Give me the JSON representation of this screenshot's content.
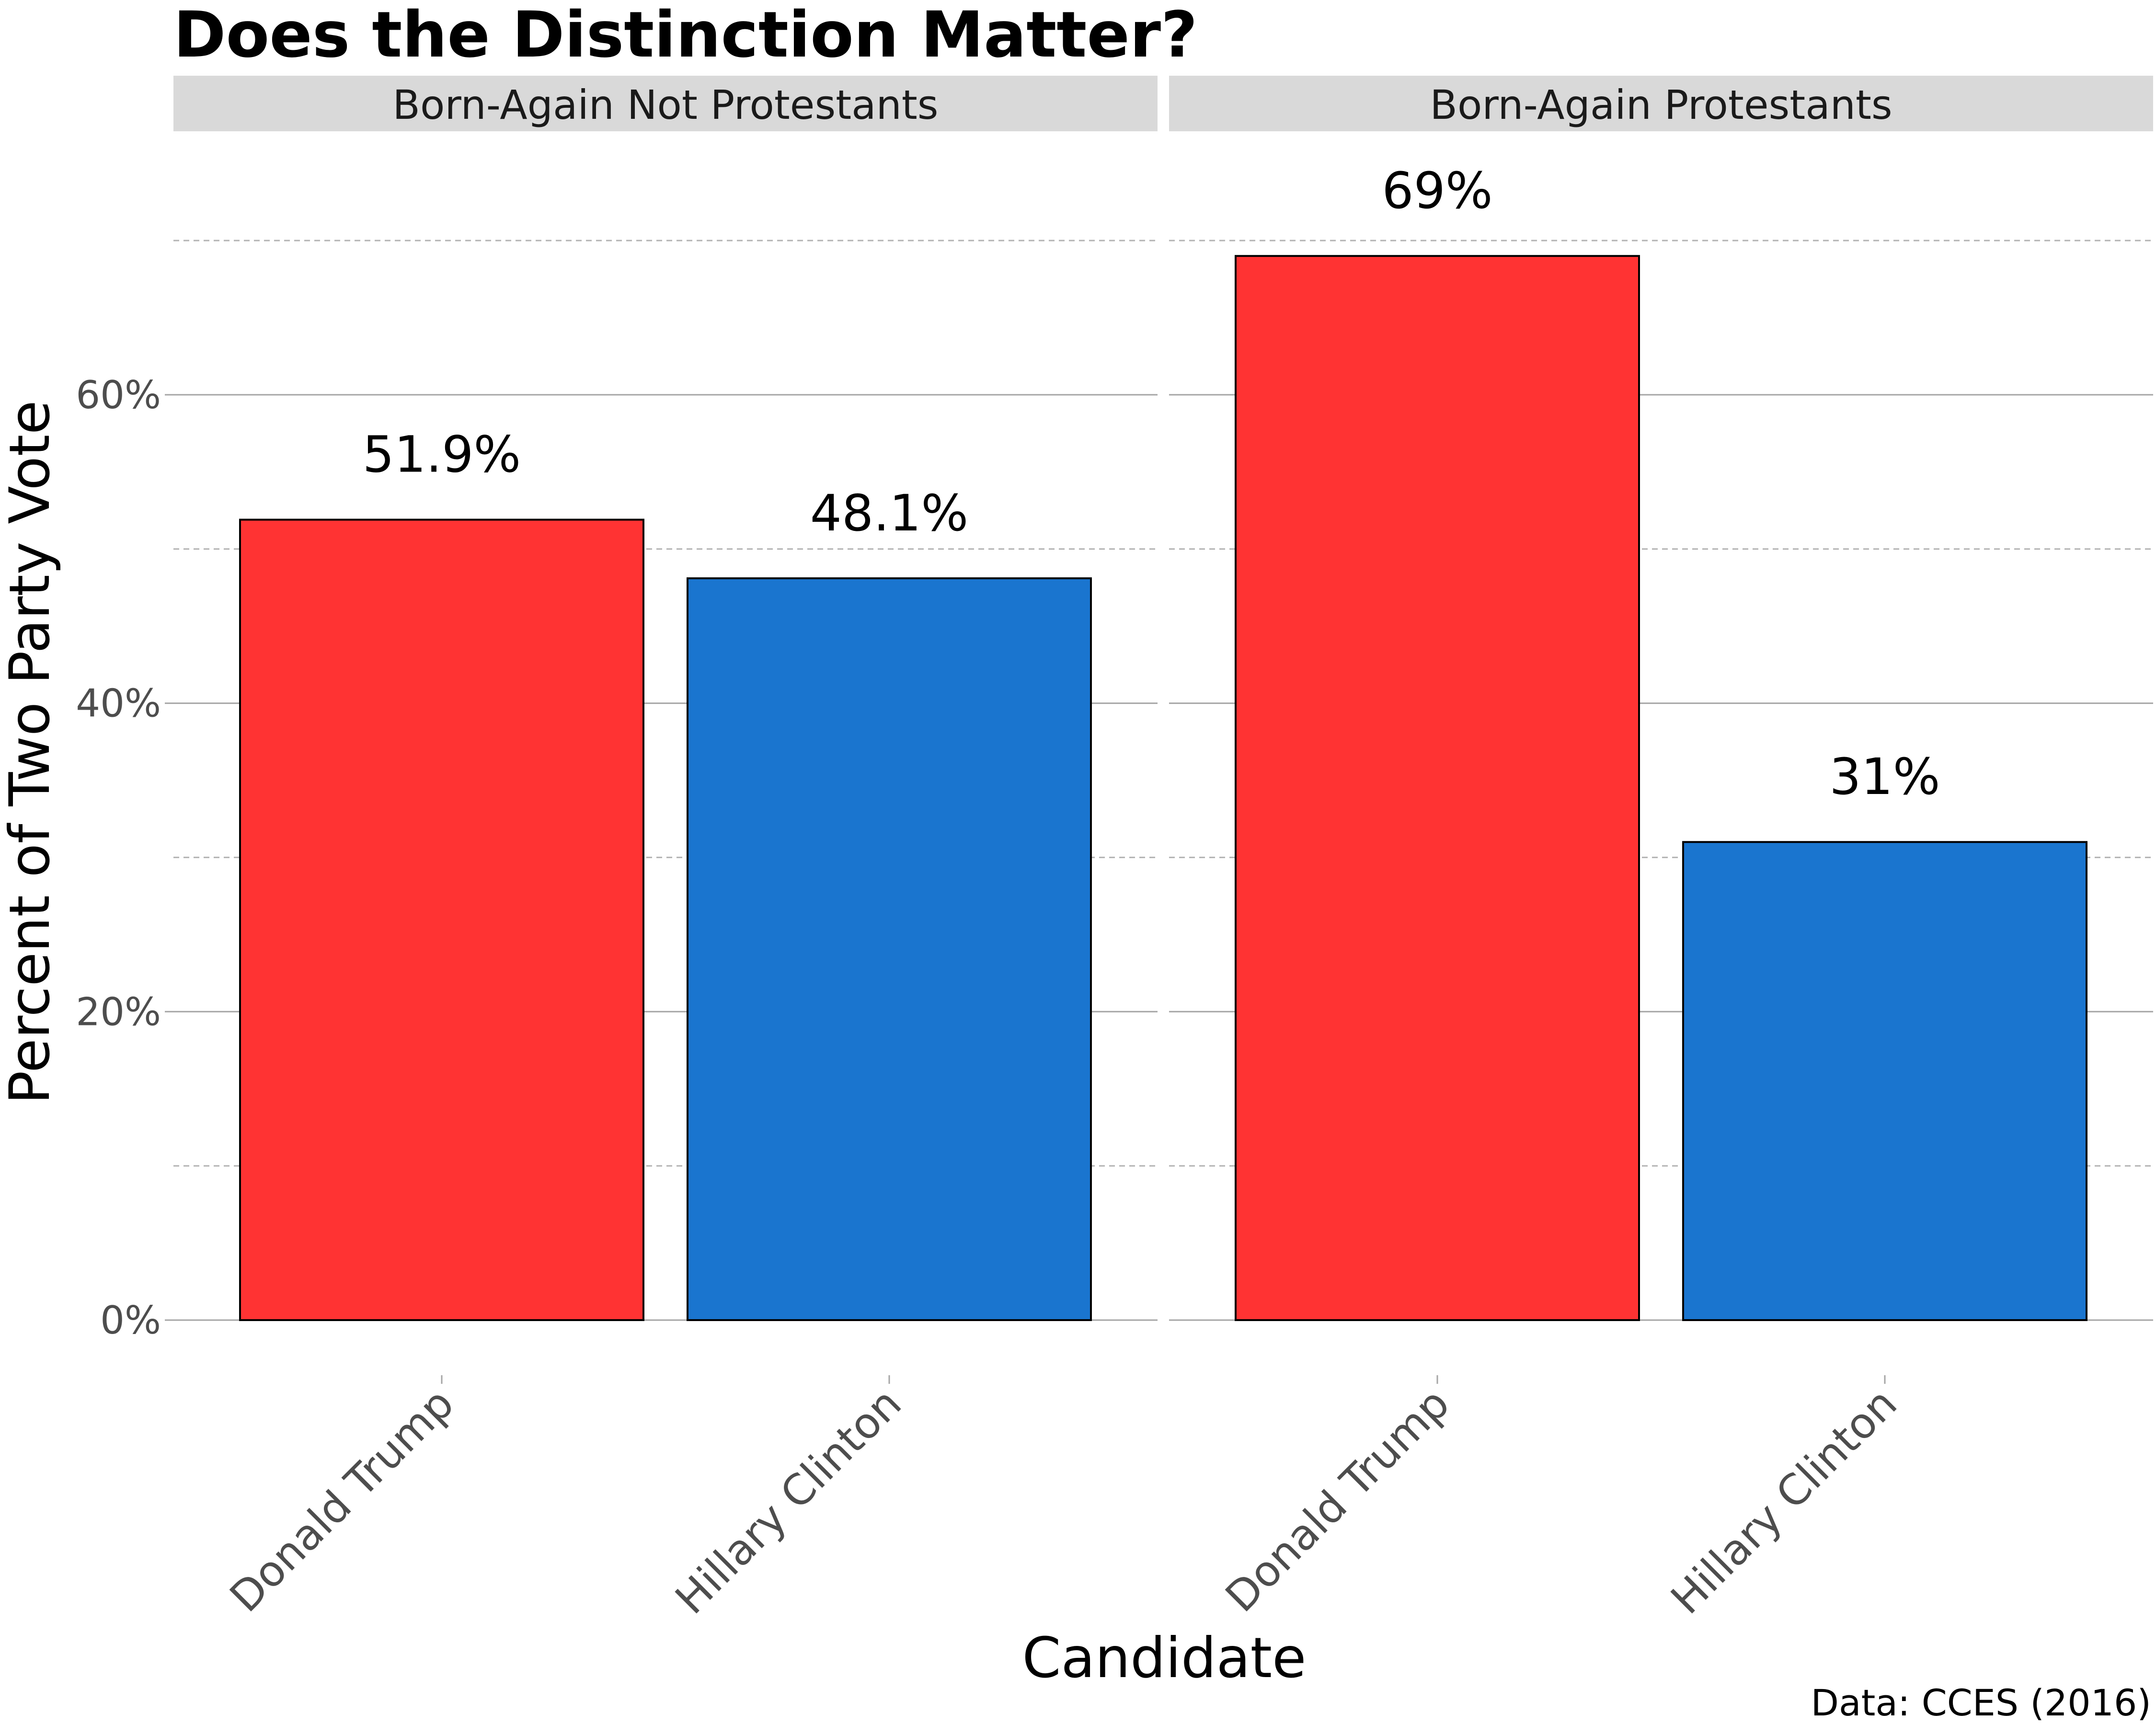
{
  "chart_data": {
    "type": "bar",
    "title": "Does the Distinction Matter?",
    "xlabel": "Candidate",
    "ylabel": "Percent of Two Party Vote",
    "caption": "Data: CCES (2016)",
    "ylim": [
      0,
      0.7
    ],
    "yticks": [
      0,
      0.2,
      0.4,
      0.6
    ],
    "ytick_labels": [
      "0%",
      "20%",
      "40%",
      "60%"
    ],
    "minor_gridlines": [
      0.1,
      0.3,
      0.5,
      0.7
    ],
    "grid": true,
    "legend": "none",
    "categories": [
      "Donald Trump",
      "Hillary Clinton"
    ],
    "colors": {
      "Donald Trump": "#ff3333",
      "Hillary Clinton": "#1a75cf"
    },
    "facets": [
      {
        "name": "Born-Again Not Protestants",
        "values": [
          0.519,
          0.481
        ],
        "labels": [
          "51.9%",
          "48.1%"
        ]
      },
      {
        "name": "Born-Again Protestants",
        "values": [
          0.69,
          0.31
        ],
        "labels": [
          "69%",
          "31%"
        ]
      }
    ]
  }
}
